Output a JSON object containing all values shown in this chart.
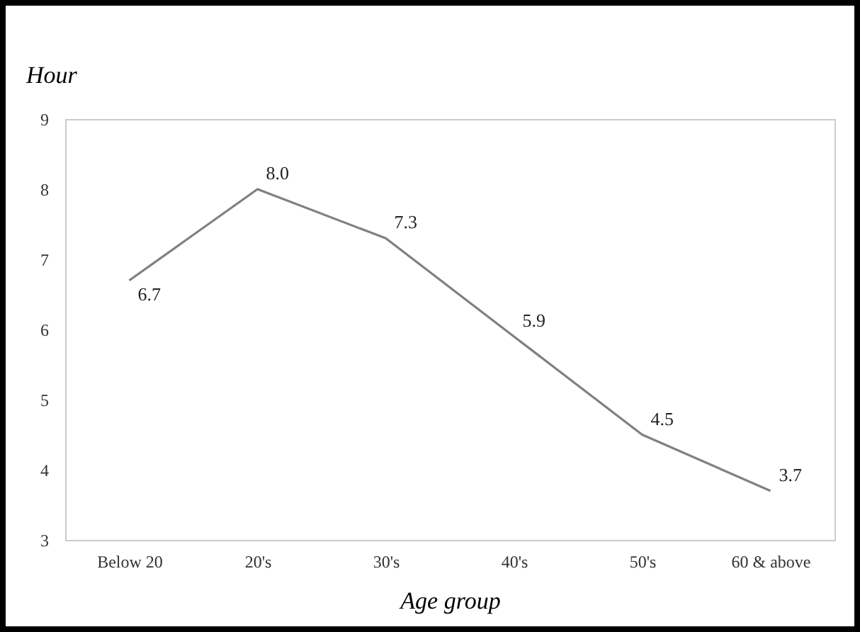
{
  "chart_data": {
    "type": "line",
    "ylabel": "Hour",
    "xlabel": "Age group",
    "categories": [
      "Below 20",
      "20's",
      "30's",
      "40's",
      "50's",
      "60 & above"
    ],
    "series": [
      {
        "color": "#808080",
        "values": [
          6.7,
          8.0,
          7.3,
          5.9,
          4.5,
          3.7
        ],
        "value_labels": [
          "6.7",
          "8.0",
          "7.3",
          "5.9",
          "4.5",
          "3.7"
        ]
      }
    ],
    "ylim": [
      3,
      9
    ],
    "yticks": [
      3,
      4,
      5,
      6,
      7,
      8,
      9
    ],
    "grid": false,
    "legend": false,
    "marker": "none",
    "line_style": "solid"
  }
}
